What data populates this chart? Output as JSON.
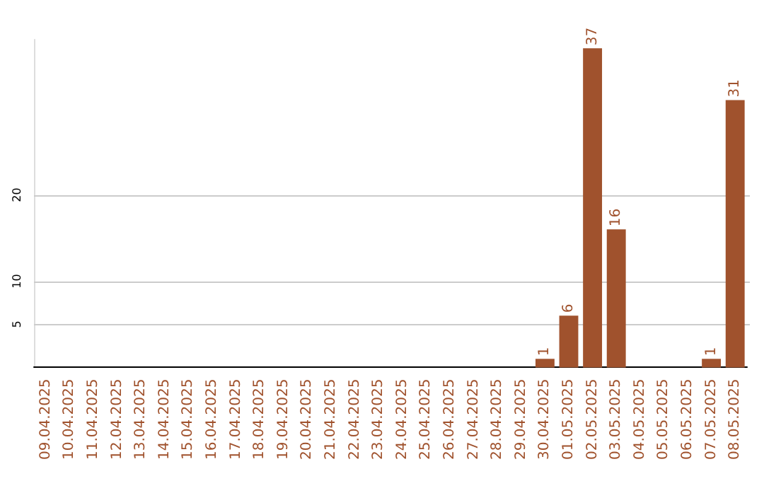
{
  "chart_data": {
    "type": "bar",
    "categories": [
      "09.04.2025",
      "10.04.2025",
      "11.04.2025",
      "12.04.2025",
      "13.04.2025",
      "14.04.2025",
      "15.04.2025",
      "16.04.2025",
      "17.04.2025",
      "18.04.2025",
      "19.04.2025",
      "20.04.2025",
      "21.04.2025",
      "22.04.2025",
      "23.04.2025",
      "24.04.2025",
      "25.04.2025",
      "26.04.2025",
      "27.04.2025",
      "28.04.2025",
      "29.04.2025",
      "30.04.2025",
      "01.05.2025",
      "02.05.2025",
      "03.05.2025",
      "04.05.2025",
      "05.05.2025",
      "06.05.2025",
      "07.05.2025",
      "08.05.2025"
    ],
    "values": [
      0,
      0,
      0,
      0,
      0,
      0,
      0,
      0,
      0,
      0,
      0,
      0,
      0,
      0,
      0,
      0,
      0,
      0,
      0,
      0,
      0,
      1,
      6,
      37,
      16,
      0,
      0,
      0,
      1,
      31
    ],
    "value_labels": [
      null,
      null,
      null,
      null,
      null,
      null,
      null,
      null,
      null,
      null,
      null,
      null,
      null,
      null,
      null,
      null,
      null,
      null,
      null,
      null,
      null,
      "1",
      "6",
      "37",
      "16",
      null,
      null,
      null,
      "1",
      "31"
    ],
    "color": "#a0522d",
    "ylim": [
      0,
      38
    ],
    "yticks": [
      5,
      10,
      20
    ],
    "grid": "y"
  }
}
